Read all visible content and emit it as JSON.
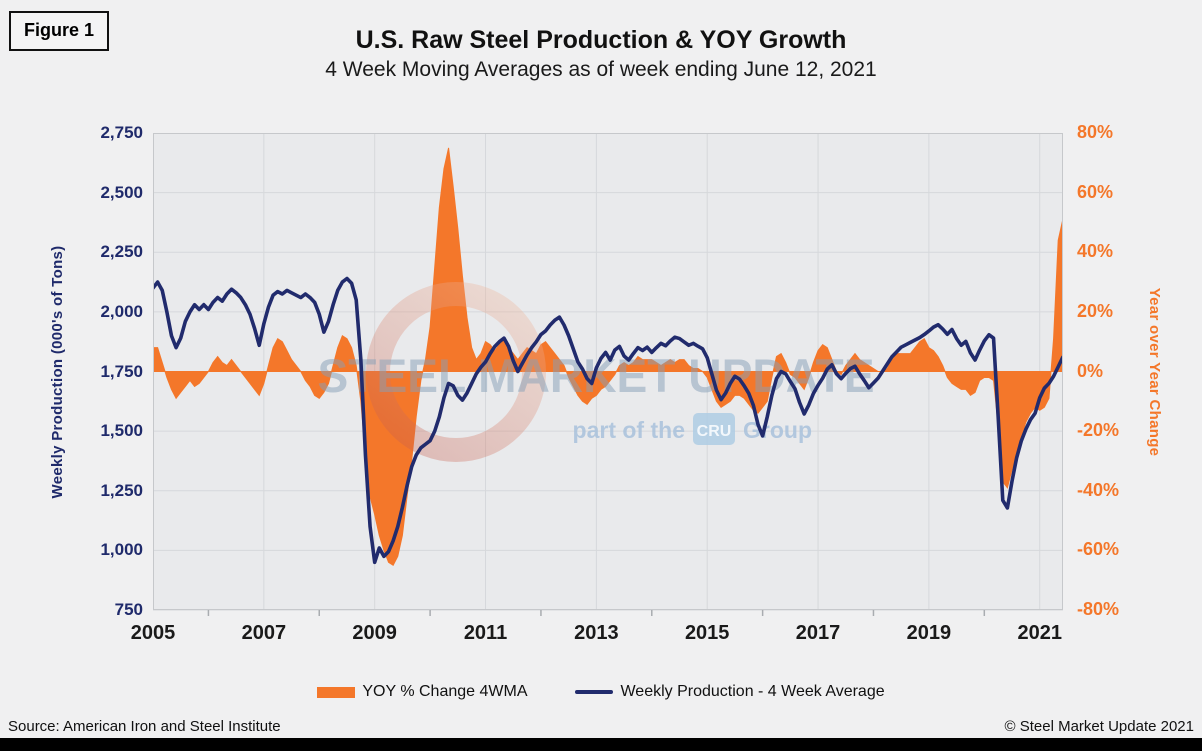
{
  "figure_label": "Figure 1",
  "header": {
    "title": "U.S. Raw Steel Production & YOY Growth",
    "subtitle": "4 Week Moving Averages as of week ending June 12, 2021"
  },
  "watermark": {
    "line1": "STEEL MARKET UPDATE",
    "part": "part of the",
    "cru": "CRU",
    "group": "Group",
    "text_color": "#87A0B8",
    "cru_box_color": "#AECDE4",
    "ring_color_top": "#EFB79C",
    "ring_color_bottom": "#C65B4B"
  },
  "legend": [
    {
      "label": "YOY % Change 4WMA",
      "color": "#F4772A",
      "type": "area"
    },
    {
      "label": "Weekly Production - 4 Week Average",
      "color": "#212B6D",
      "type": "line"
    }
  ],
  "footer": {
    "source": "Source: American Iron and Steel Institute",
    "copyright": "© Steel Market Update 2021"
  },
  "colors": {
    "orange": "#F4772A",
    "navy": "#212B6D",
    "plot_bg": "#E9EAEC",
    "grid": "#D6D8DB",
    "plot_border": "#C6C8CB",
    "page_bg": "#F0F0F1"
  },
  "chart_data": {
    "type": "line+area, dual axis, monthly-digitized from weekly 4WMA",
    "x_domain": [
      2005,
      2021.42
    ],
    "x_start": 2005.0,
    "x_step_years": 0.0833333,
    "x_ticks": [
      2005,
      2007,
      2009,
      2011,
      2013,
      2015,
      2017,
      2019,
      2021
    ],
    "x_tick_labels": [
      "2005",
      "2007",
      "2009",
      "2011",
      "2013",
      "2015",
      "2017",
      "2019",
      "2021"
    ],
    "x_minor_ticks": [
      2006,
      2008,
      2010,
      2012,
      2014,
      2016,
      2018,
      2020
    ],
    "left_axis": {
      "label": "Weekly Production (000's of Tons)",
      "min": 750,
      "max": 2750,
      "tick_step": 250,
      "tick_values": [
        2750,
        2500,
        2250,
        2000,
        1750,
        1500,
        1250,
        1000,
        750
      ],
      "tick_labels": [
        "2,750",
        "2,500",
        "2,250",
        "2,000",
        "1,750",
        "1,500",
        "1,250",
        "1,000",
        "750"
      ],
      "color": "#1F2A6B"
    },
    "right_axis": {
      "label": "Year over Year Change",
      "min": -80,
      "max": 80,
      "tick_step": 20,
      "tick_values": [
        80,
        60,
        40,
        20,
        0,
        -20,
        -40,
        -60,
        -80
      ],
      "tick_labels": [
        "80%",
        "60%",
        "40%",
        "20%",
        "0%",
        "-20%",
        "-40%",
        "-60%",
        "-80%"
      ],
      "color": "#F4772A"
    },
    "series": [
      {
        "name": "YOY % Change 4WMA",
        "axis": "right",
        "type": "area",
        "color": "#F4772A",
        "unit": "%",
        "values": [
          8,
          8,
          3,
          -2,
          -6,
          -9,
          -7,
          -5,
          -3,
          -5,
          -4,
          -2,
          0,
          3,
          5,
          3,
          2,
          4,
          2,
          0,
          -2,
          -4,
          -6,
          -8,
          -4,
          2,
          8,
          11,
          10,
          7,
          4,
          2,
          0,
          -3,
          -5,
          -8,
          -9,
          -7,
          -4,
          2,
          8,
          12,
          11,
          8,
          2,
          -10,
          -28,
          -42,
          -48,
          -55,
          -60,
          -64,
          -65,
          -62,
          -55,
          -42,
          -30,
          -15,
          -3,
          4,
          15,
          35,
          55,
          68,
          75,
          62,
          48,
          32,
          18,
          8,
          4,
          6,
          10,
          9,
          7,
          9,
          11,
          8,
          6,
          4,
          6,
          8,
          7,
          6,
          9,
          10,
          8,
          6,
          4,
          2,
          -2,
          -5,
          -8,
          -10,
          -11,
          -9,
          -8,
          -6,
          -5,
          -3,
          -1,
          2,
          3,
          2,
          3,
          5,
          4,
          4,
          4,
          3,
          2,
          3,
          4,
          3,
          4,
          4,
          2,
          1,
          1,
          0,
          -2,
          -6,
          -10,
          -12,
          -11,
          -10,
          -8,
          -8,
          -9,
          -11,
          -13,
          -14,
          -12,
          -10,
          -2,
          5,
          6,
          3,
          -1,
          -2,
          -4,
          -6,
          -2,
          3,
          7,
          9,
          8,
          4,
          0,
          -1,
          2,
          4,
          6,
          4,
          3,
          2,
          1,
          0,
          0,
          1,
          4,
          6,
          6,
          6,
          6,
          8,
          10,
          11,
          8,
          7,
          5,
          2,
          -2,
          -4,
          -5,
          -6,
          -6,
          -8,
          -7,
          -3,
          -2,
          -2,
          -3,
          -18,
          -37,
          -39,
          -33,
          -27,
          -22,
          -17,
          -14,
          -12,
          -13,
          -12,
          -9,
          11,
          44,
          51
        ]
      },
      {
        "name": "Weekly Production - 4 Week Average",
        "axis": "left",
        "type": "line",
        "color": "#212B6D",
        "unit": "000s tons",
        "values": [
          2100,
          2125,
          2090,
          2000,
          1900,
          1850,
          1890,
          1960,
          2000,
          2030,
          2010,
          2030,
          2010,
          2040,
          2060,
          2045,
          2075,
          2095,
          2080,
          2060,
          2030,
          1990,
          1930,
          1860,
          1950,
          2020,
          2070,
          2085,
          2075,
          2090,
          2080,
          2070,
          2060,
          2075,
          2060,
          2040,
          1990,
          1915,
          1960,
          2030,
          2090,
          2125,
          2140,
          2120,
          2050,
          1800,
          1400,
          1100,
          950,
          1010,
          975,
          995,
          1040,
          1100,
          1180,
          1270,
          1350,
          1400,
          1430,
          1445,
          1460,
          1500,
          1560,
          1640,
          1700,
          1690,
          1650,
          1630,
          1660,
          1700,
          1740,
          1768,
          1790,
          1825,
          1855,
          1875,
          1890,
          1855,
          1795,
          1750,
          1785,
          1820,
          1850,
          1875,
          1905,
          1920,
          1945,
          1965,
          1978,
          1945,
          1900,
          1845,
          1790,
          1760,
          1720,
          1700,
          1765,
          1805,
          1830,
          1798,
          1840,
          1855,
          1815,
          1798,
          1825,
          1850,
          1838,
          1852,
          1830,
          1850,
          1868,
          1858,
          1878,
          1894,
          1888,
          1874,
          1860,
          1868,
          1856,
          1845,
          1808,
          1740,
          1672,
          1632,
          1660,
          1700,
          1730,
          1718,
          1690,
          1658,
          1608,
          1528,
          1480,
          1560,
          1650,
          1720,
          1750,
          1740,
          1708,
          1678,
          1620,
          1572,
          1610,
          1658,
          1692,
          1722,
          1760,
          1778,
          1740,
          1720,
          1742,
          1762,
          1772,
          1740,
          1712,
          1682,
          1702,
          1722,
          1752,
          1782,
          1812,
          1832,
          1852,
          1862,
          1872,
          1882,
          1892,
          1905,
          1920,
          1936,
          1946,
          1928,
          1906,
          1926,
          1888,
          1860,
          1876,
          1828,
          1798,
          1840,
          1878,
          1904,
          1890,
          1560,
          1210,
          1178,
          1290,
          1388,
          1458,
          1508,
          1548,
          1575,
          1640,
          1680,
          1700,
          1730,
          1770,
          1810
        ]
      }
    ],
    "grid": "on",
    "legend_position": "bottom-center"
  }
}
